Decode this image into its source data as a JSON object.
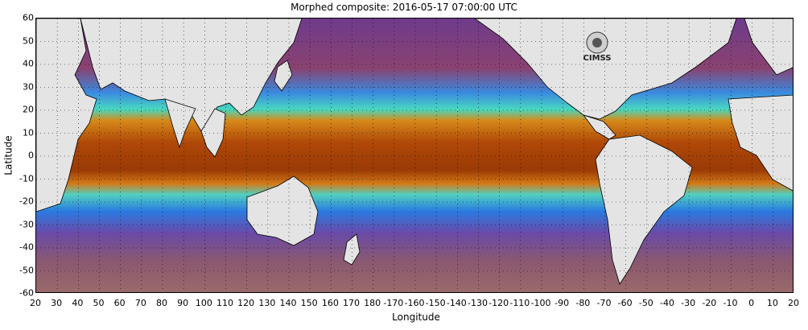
{
  "title": "Morphed composite: 2016-05-17 07:00:00 UTC",
  "axes": {
    "xlabel": "Longitude",
    "ylabel": "Latitude",
    "yticks": [
      "60",
      "50",
      "40",
      "30",
      "20",
      "10",
      "0",
      "-10",
      "-20",
      "-30",
      "-40",
      "-50",
      "-60"
    ],
    "xticks": [
      "20",
      "30",
      "40",
      "50",
      "60",
      "70",
      "80",
      "90",
      "100",
      "110",
      "120",
      "130",
      "140",
      "150",
      "160",
      "170",
      "180",
      "-170",
      "-160",
      "-150",
      "-140",
      "-130",
      "-120",
      "-110",
      "-100",
      "-90",
      "-80",
      "-70",
      "-60",
      "-50",
      "-40",
      "-30",
      "-20",
      "-10",
      "0",
      "10",
      "20"
    ]
  },
  "logo": {
    "text": "CIMSS"
  },
  "colors": {
    "dry": "#7a3f8a",
    "moist_low": "#1f6fd6",
    "moist_mid": "#38d6c8",
    "moist_high": "#d9a020",
    "very_moist": "#b24a07",
    "land": "#e4e4e4"
  }
}
